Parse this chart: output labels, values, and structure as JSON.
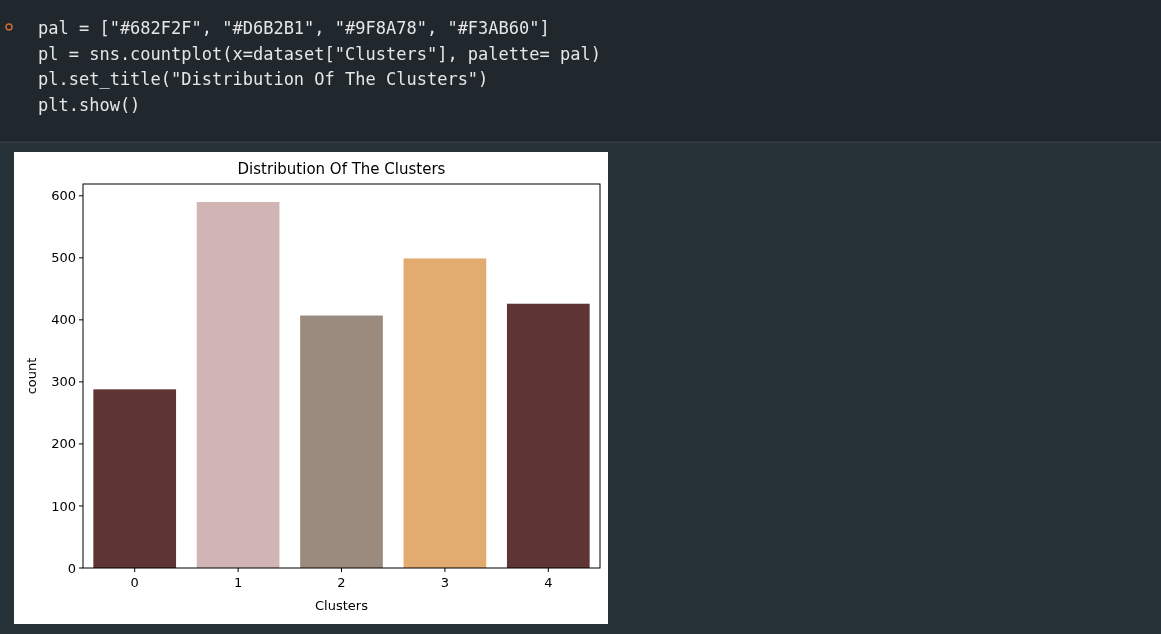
{
  "chart_data": {
    "type": "bar",
    "title": "Distribution Of The Clusters",
    "xlabel": "Clusters",
    "ylabel": "count",
    "categories": [
      "0",
      "1",
      "2",
      "3",
      "4"
    ],
    "values": [
      288,
      590,
      407,
      499,
      426
    ],
    "colors": [
      "#5f3435",
      "#d1b5b4",
      "#9b8b7e",
      "#e2ab6f",
      "#5f3435"
    ],
    "ylim": [
      0,
      619
    ],
    "yticks": [
      0,
      100,
      200,
      300,
      400,
      500,
      600
    ],
    "grid": false,
    "annotations": [
      "pal = [\"#682F2F\", \"#D6B2B1\", \"#9F8A78\", \"#F3AB60\"]",
      "pl = sns.countplot(x=dataset[\"Clusters\"], palette= pal)",
      "pl.set_title(\"Distribution Of The Clusters\")",
      "plt.show()"
    ]
  }
}
